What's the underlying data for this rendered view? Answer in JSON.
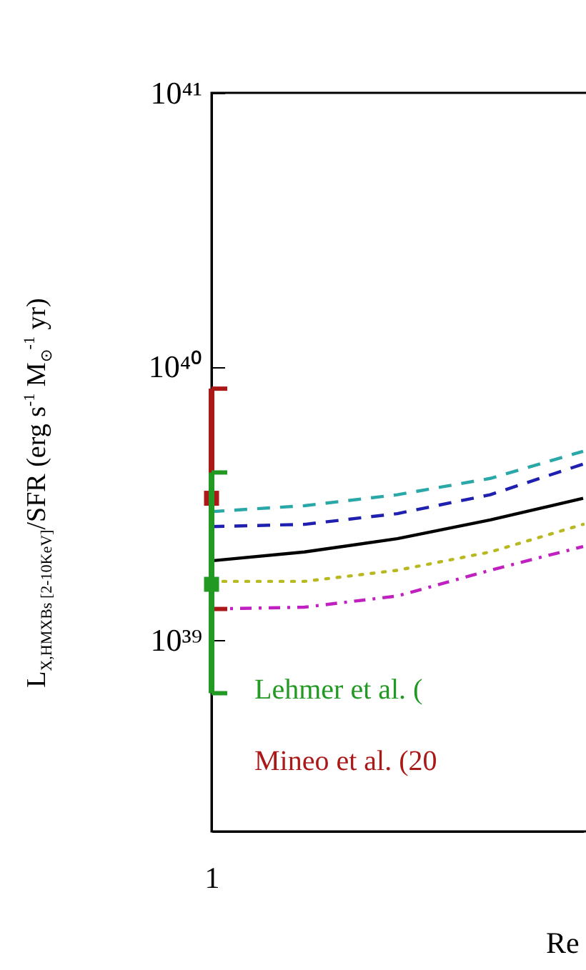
{
  "chart_data": {
    "type": "line",
    "xlabel": "Re",
    "ylabel": "L$_{X,HMXBs [2-10KeV]}$/SFR (erg s$^{-1}$ M$_{⊙}$$^{-1}$ yr)",
    "categories": [
      "1",
      null,
      null,
      null,
      null
    ],
    "log": "y",
    "ylim": [
      2e+38,
      1e+41
    ],
    "yticks": [
      {
        "value": 1e+39,
        "label": "10³⁹"
      },
      {
        "value": 1e+40,
        "label": "10⁴⁰"
      },
      {
        "value": 1e+41,
        "label": "10⁴¹"
      }
    ],
    "legend": "bottom left",
    "series": [
      {
        "color": "#2aa8a8",
        "line_style": "dashed",
        "values": [
          2.95e+39,
          3.1e+39,
          3.4e+39,
          3.9e+39,
          4.9e+39
        ]
      },
      {
        "color": "#2020b0",
        "line_style": "dashed",
        "values": [
          2.6e+39,
          2.65e+39,
          2.9e+39,
          3.4e+39,
          4.4e+39
        ]
      },
      {
        "color": "#000000",
        "line_style": "solid",
        "values": [
          1.95e+39,
          2.1e+39,
          2.35e+39,
          2.75e+39,
          3.3e+39
        ]
      },
      {
        "color": "#b8b820",
        "line_style": "dotted",
        "values": [
          1.64e+39,
          1.64e+39,
          1.8e+39,
          2.1e+39,
          2.65e+39
        ]
      },
      {
        "color": "#c020c0",
        "line_style": "dashdot",
        "values": [
          1.3e+39,
          1.32e+39,
          1.45e+39,
          1.8e+39,
          2.2e+39
        ]
      },
      {
        "name": "Mineo et al. (20",
        "type": "scatter",
        "marker": "square",
        "color": "#aa1818",
        "values": [
          3.3e+39,
          null,
          null,
          null,
          null
        ],
        "errors": [
          [
            1.3e+39,
            8.3e+39
          ],
          null,
          null,
          null,
          null
        ]
      },
      {
        "name": "Lehmer et al. (",
        "type": "scatter",
        "marker": "square",
        "color": "#229922",
        "values": [
          1.6e+39,
          null,
          null,
          null,
          null
        ],
        "errors": [
          [
            6.4e+38,
            4.1e+39
          ],
          null,
          null,
          null,
          null
        ]
      }
    ]
  }
}
